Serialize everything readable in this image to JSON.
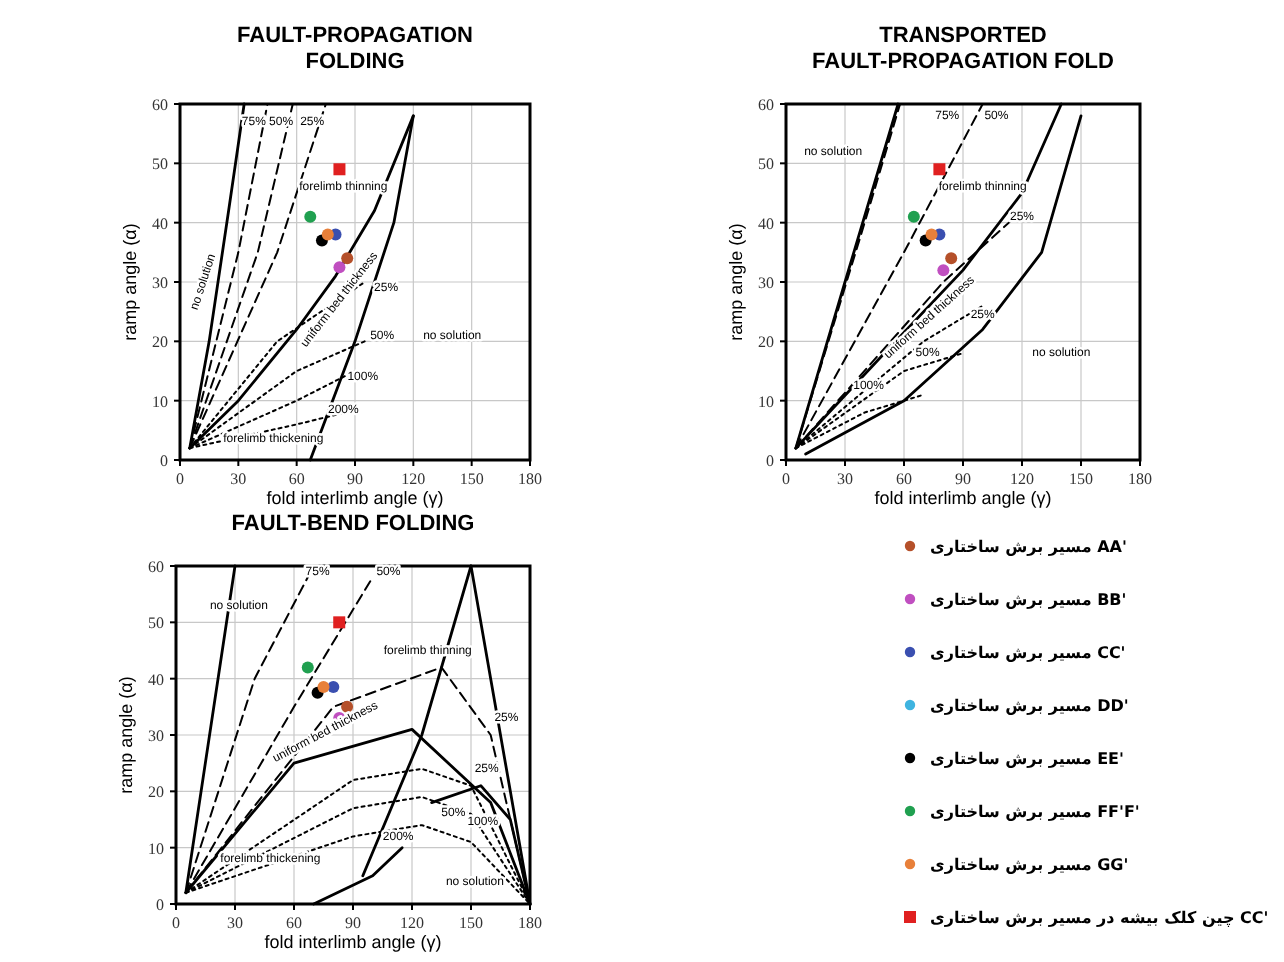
{
  "chart_data": [
    {
      "type": "scatter",
      "title": "FAULT-PROPAGATION FOLDING",
      "xlabel": "fold interlimb angle (γ)",
      "ylabel": "ramp angle (α)",
      "xlim": [
        0,
        180
      ],
      "ylim": [
        0,
        60
      ],
      "xticks": [
        0,
        30,
        60,
        90,
        120,
        150,
        180
      ],
      "yticks": [
        0,
        10,
        20,
        30,
        40,
        50,
        60
      ],
      "grid": true,
      "series": [
        {
          "type": "line",
          "color": "#000000",
          "line_style": "solid",
          "x": [
            5,
            15,
            25,
            33
          ],
          "values": [
            2,
            20,
            42,
            60
          ]
        },
        {
          "type": "line",
          "color": "#000000",
          "line_style": "solid",
          "x": [
            5,
            30,
            60,
            80,
            100,
            120
          ],
          "values": [
            2,
            10,
            22,
            31,
            42,
            58
          ]
        },
        {
          "type": "line",
          "color": "#000000",
          "line_style": "solid",
          "x": [
            67,
            90,
            110,
            120
          ],
          "values": [
            0,
            20,
            40,
            58
          ]
        },
        {
          "type": "line",
          "color": "#000000",
          "line_style": "dashed",
          "x": [
            5,
            30,
            45
          ],
          "values": [
            2,
            35,
            60
          ]
        },
        {
          "type": "line",
          "color": "#000000",
          "line_style": "dashed",
          "x": [
            5,
            40,
            58
          ],
          "values": [
            2,
            35,
            60
          ]
        },
        {
          "type": "line",
          "color": "#000000",
          "line_style": "dashed",
          "x": [
            5,
            50,
            75
          ],
          "values": [
            2,
            35,
            60
          ]
        },
        {
          "type": "line",
          "color": "#000000",
          "line_style": "dotted",
          "x": [
            5,
            50,
            95
          ],
          "values": [
            2,
            20,
            30
          ]
        },
        {
          "type": "line",
          "color": "#000000",
          "line_style": "dotted",
          "x": [
            5,
            60,
            95
          ],
          "values": [
            2,
            15,
            20
          ]
        },
        {
          "type": "line",
          "color": "#000000",
          "line_style": "dotted",
          "x": [
            5,
            60,
            90
          ],
          "values": [
            2,
            10,
            15
          ]
        },
        {
          "type": "line",
          "color": "#000000",
          "line_style": "dotted",
          "x": [
            5,
            60,
            85
          ],
          "values": [
            2,
            6,
            8
          ]
        },
        {
          "type": "scatter",
          "marker": "circle",
          "color": "#b5502a",
          "x": [
            86
          ],
          "values": [
            34
          ]
        },
        {
          "type": "scatter",
          "marker": "circle",
          "color": "#c04fc0",
          "x": [
            82
          ],
          "values": [
            32.5
          ]
        },
        {
          "type": "scatter",
          "marker": "circle",
          "color": "#3a4fb0",
          "x": [
            80
          ],
          "values": [
            38
          ]
        },
        {
          "type": "scatter",
          "marker": "circle",
          "color": "#000000",
          "x": [
            73
          ],
          "values": [
            37
          ]
        },
        {
          "type": "scatter",
          "marker": "circle",
          "color": "#20a050",
          "x": [
            67
          ],
          "values": [
            41
          ]
        },
        {
          "type": "scatter",
          "marker": "circle",
          "color": "#e8803a",
          "x": [
            76
          ],
          "values": [
            38
          ]
        },
        {
          "type": "scatter",
          "marker": "square",
          "color": "#e02020",
          "x": [
            82
          ],
          "values": [
            49
          ]
        }
      ],
      "annotations": [
        "75%",
        "50%",
        "25%",
        "forelimb thinning",
        "no solution",
        "uniform bed thickness",
        "25%",
        "50%",
        "100%",
        "200%",
        "no solution",
        "forelimb thickening"
      ]
    },
    {
      "type": "scatter",
      "title": "TRANSPORTED FAULT-PROPAGATION FOLD",
      "xlabel": "fold interlimb angle (γ)",
      "ylabel": "ramp angle (α)",
      "xlim": [
        0,
        180
      ],
      "ylim": [
        0,
        60
      ],
      "xticks": [
        0,
        30,
        60,
        90,
        120,
        150,
        180
      ],
      "yticks": [
        0,
        10,
        20,
        30,
        40,
        50,
        60
      ],
      "grid": true,
      "series": [
        {
          "type": "line",
          "color": "#000000",
          "line_style": "solid",
          "x": [
            5,
            30,
            57
          ],
          "values": [
            2,
            30,
            60
          ]
        },
        {
          "type": "line",
          "color": "#000000",
          "line_style": "solid",
          "x": [
            5,
            50,
            90,
            120,
            140
          ],
          "values": [
            2,
            18,
            32,
            45,
            60
          ]
        },
        {
          "type": "line",
          "color": "#000000",
          "line_style": "solid",
          "x": [
            10,
            60,
            100,
            130,
            150
          ],
          "values": [
            1,
            10,
            22,
            35,
            58
          ]
        },
        {
          "type": "line",
          "color": "#000000",
          "line_style": "dashed",
          "x": [
            5,
            40,
            58
          ],
          "values": [
            2,
            40,
            60
          ]
        },
        {
          "type": "line",
          "color": "#000000",
          "line_style": "dashed",
          "x": [
            5,
            60,
            100
          ],
          "values": [
            2,
            35,
            60
          ]
        },
        {
          "type": "line",
          "color": "#000000",
          "line_style": "dashed",
          "x": [
            5,
            80,
            120
          ],
          "values": [
            2,
            30,
            42
          ]
        },
        {
          "type": "line",
          "color": "#000000",
          "line_style": "dotted",
          "x": [
            5,
            70,
            100
          ],
          "values": [
            2,
            20,
            26
          ]
        },
        {
          "type": "line",
          "color": "#000000",
          "line_style": "dotted",
          "x": [
            5,
            60,
            90
          ],
          "values": [
            2,
            15,
            18
          ]
        },
        {
          "type": "line",
          "color": "#000000",
          "line_style": "dotted",
          "x": [
            5,
            40,
            70
          ],
          "values": [
            2,
            8,
            11
          ]
        },
        {
          "type": "scatter",
          "marker": "circle",
          "color": "#b5502a",
          "x": [
            84
          ],
          "values": [
            34
          ]
        },
        {
          "type": "scatter",
          "marker": "circle",
          "color": "#c04fc0",
          "x": [
            80
          ],
          "values": [
            32
          ]
        },
        {
          "type": "scatter",
          "marker": "circle",
          "color": "#3a4fb0",
          "x": [
            78
          ],
          "values": [
            38
          ]
        },
        {
          "type": "scatter",
          "marker": "circle",
          "color": "#000000",
          "x": [
            71
          ],
          "values": [
            37
          ]
        },
        {
          "type": "scatter",
          "marker": "circle",
          "color": "#20a050",
          "x": [
            65
          ],
          "values": [
            41
          ]
        },
        {
          "type": "scatter",
          "marker": "circle",
          "color": "#e8803a",
          "x": [
            74
          ],
          "values": [
            38
          ]
        },
        {
          "type": "scatter",
          "marker": "square",
          "color": "#e02020",
          "x": [
            78
          ],
          "values": [
            49
          ]
        }
      ],
      "annotations": [
        "no solution",
        "75%",
        "50%",
        "forelimb thinning",
        "25%",
        "uniform bed thickness",
        "25%",
        "50%",
        "100%",
        "no solution"
      ]
    },
    {
      "type": "scatter",
      "title": "FAULT-BEND FOLDING",
      "xlabel": "fold interlimb angle (γ)",
      "ylabel": "ramp angle (α)",
      "xlim": [
        0,
        180
      ],
      "ylim": [
        0,
        60
      ],
      "xticks": [
        0,
        30,
        60,
        90,
        120,
        150,
        180
      ],
      "yticks": [
        0,
        10,
        20,
        30,
        40,
        50,
        60
      ],
      "grid": true,
      "legend": "right",
      "series": [
        {
          "type": "line",
          "color": "#000000",
          "line_style": "solid",
          "x": [
            5,
            30
          ],
          "values": [
            2,
            60
          ]
        },
        {
          "type": "line",
          "color": "#000000",
          "line_style": "dashed",
          "x": [
            5,
            40,
            70
          ],
          "values": [
            2,
            40,
            60
          ]
        },
        {
          "type": "line",
          "color": "#000000",
          "line_style": "dashed",
          "x": [
            5,
            60,
            100
          ],
          "values": [
            2,
            35,
            58
          ]
        },
        {
          "type": "line",
          "color": "#000000",
          "line_style": "solid",
          "x": [
            95,
            125,
            150
          ],
          "values": [
            5,
            30,
            60
          ]
        },
        {
          "type": "line",
          "color": "#000000",
          "line_style": "solid",
          "x": [
            150,
            180
          ],
          "values": [
            60,
            0
          ]
        },
        {
          "type": "line",
          "color": "#000000",
          "line_style": "solid",
          "x": [
            5,
            60,
            120,
            160,
            180
          ],
          "values": [
            2,
            25,
            31,
            18,
            0
          ]
        },
        {
          "type": "line",
          "color": "#000000",
          "line_style": "dashed",
          "x": [
            5,
            80,
            135,
            160,
            180
          ],
          "values": [
            2,
            35,
            42,
            30,
            0
          ]
        },
        {
          "type": "line",
          "color": "#000000",
          "line_style": "dotted",
          "x": [
            5,
            90,
            125,
            150,
            180
          ],
          "values": [
            2,
            22,
            24,
            21,
            0
          ]
        },
        {
          "type": "line",
          "color": "#000000",
          "line_style": "dotted",
          "x": [
            5,
            90,
            125,
            150,
            180
          ],
          "values": [
            2,
            17,
            19,
            16,
            0
          ]
        },
        {
          "type": "line",
          "color": "#000000",
          "line_style": "dotted",
          "x": [
            5,
            90,
            125,
            150,
            180
          ],
          "values": [
            2,
            12,
            14,
            11,
            0
          ]
        },
        {
          "type": "line",
          "color": "#000000",
          "line_style": "solid",
          "x": [
            130,
            155,
            170,
            180
          ],
          "values": [
            18,
            21,
            15,
            0
          ]
        },
        {
          "type": "line",
          "color": "#000000",
          "line_style": "solid",
          "x": [
            70,
            100,
            115
          ],
          "values": [
            0,
            5,
            10
          ]
        },
        {
          "type": "scatter",
          "marker": "circle",
          "color": "#b5502a",
          "name": "مسیر برش ساختاری AA'",
          "x": [
            87
          ],
          "values": [
            35
          ]
        },
        {
          "type": "scatter",
          "marker": "circle",
          "color": "#c04fc0",
          "name": "مسیر برش ساختاری BB'",
          "x": [
            83
          ],
          "values": [
            33
          ]
        },
        {
          "type": "scatter",
          "marker": "circle",
          "color": "#3a4fb0",
          "name": "مسیر برش ساختاری CC'",
          "x": [
            80
          ],
          "values": [
            38.5
          ]
        },
        {
          "type": "scatter",
          "marker": "circle",
          "color": "#3fb4e0",
          "name": "مسیر برش ساختاری DD'",
          "x": [
            null
          ],
          "values": [
            null
          ]
        },
        {
          "type": "scatter",
          "marker": "circle",
          "color": "#000000",
          "name": "مسیر برش ساختاری EE'",
          "x": [
            72
          ],
          "values": [
            37.5
          ]
        },
        {
          "type": "scatter",
          "marker": "circle",
          "color": "#20a050",
          "name": "مسیر برش ساختاری FF'F'",
          "x": [
            67
          ],
          "values": [
            42
          ]
        },
        {
          "type": "scatter",
          "marker": "circle",
          "color": "#e8803a",
          "name": "مسیر برش ساختاری GG'",
          "x": [
            75
          ],
          "values": [
            38.5
          ]
        },
        {
          "type": "scatter",
          "marker": "square",
          "color": "#e02020",
          "name": "چین کلک بیشه در مسیر برش ساختاری CC'",
          "x": [
            83
          ],
          "values": [
            50
          ]
        }
      ],
      "annotations": [
        "no solution",
        "75%",
        "50%",
        "forelimb thinning",
        "25%",
        "uniform bed thickness",
        "25%",
        "50%",
        "100%",
        "200%",
        "forelimb thickening",
        "no solution"
      ]
    }
  ]
}
